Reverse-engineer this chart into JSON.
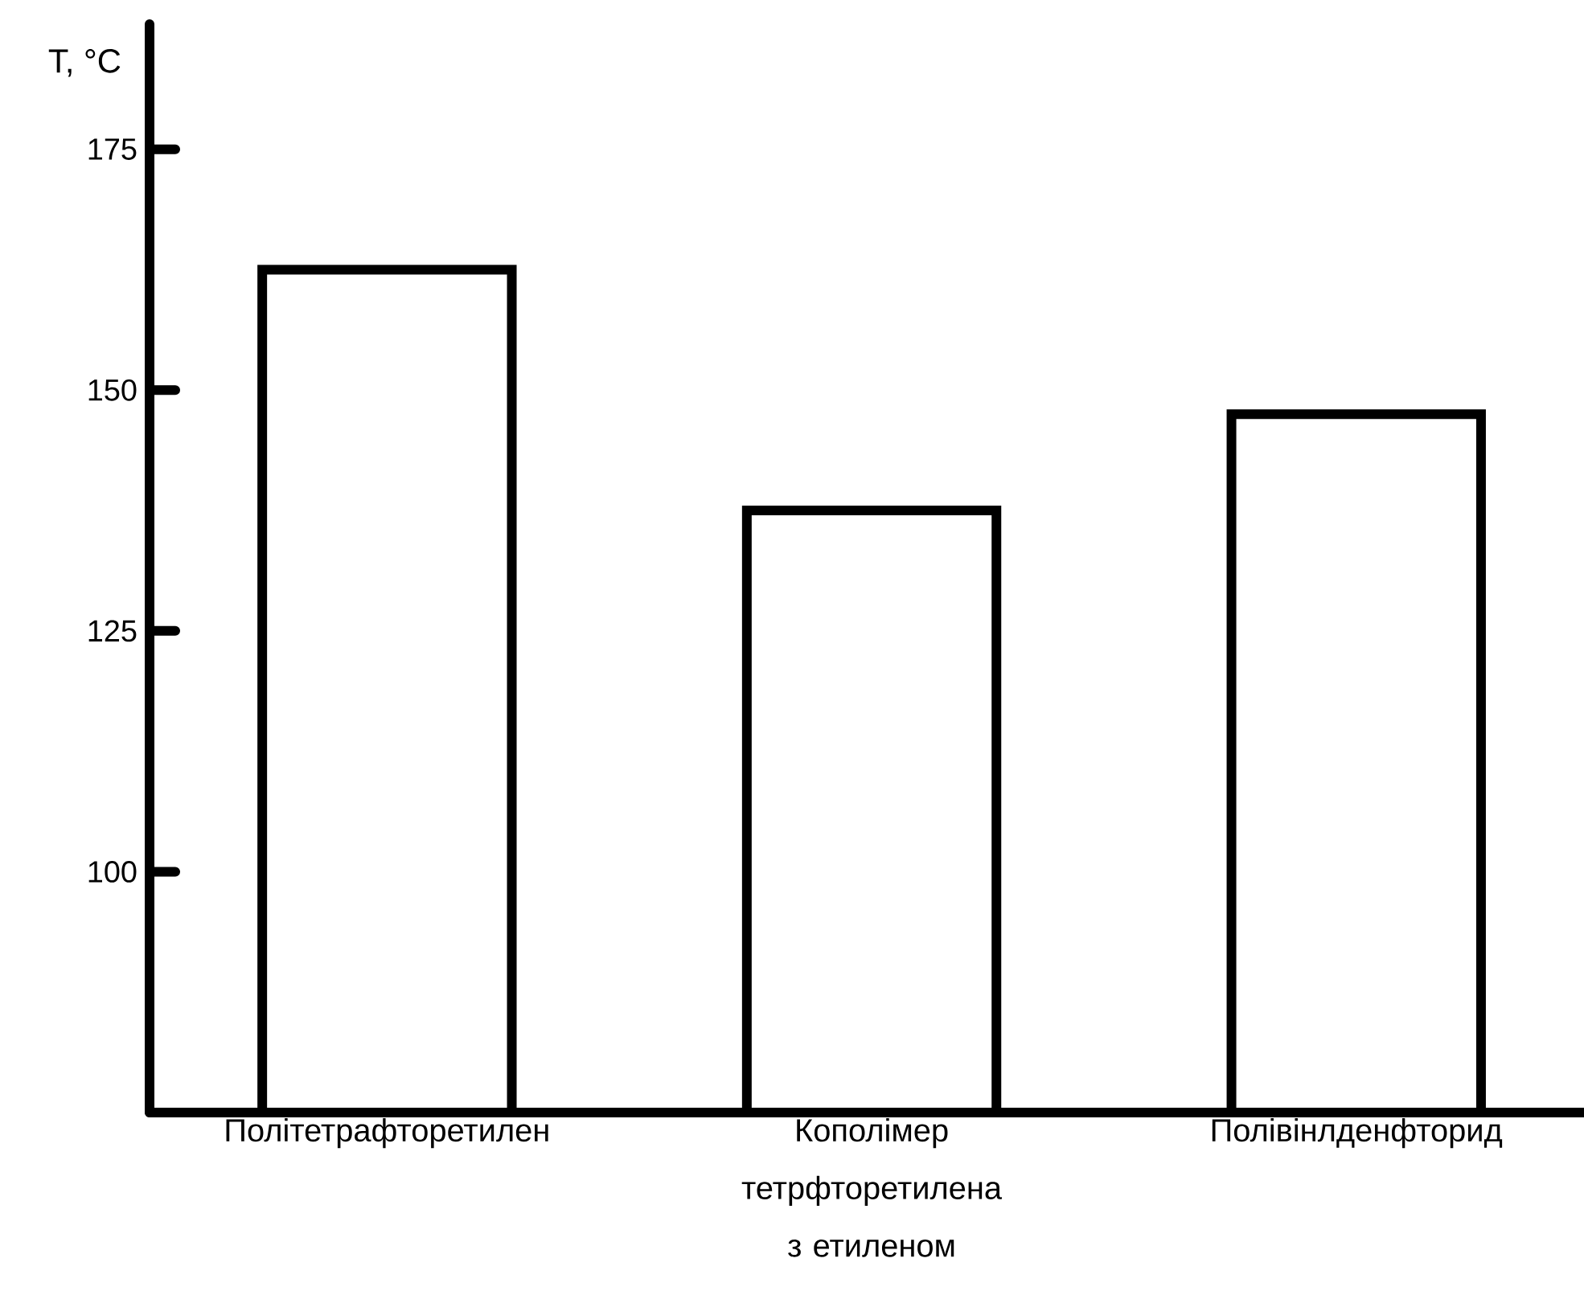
{
  "chart_data": {
    "type": "bar",
    "ylabel": "T, °C",
    "categories": [
      "Політетрафторетилен",
      "Кополімер тетрфторетилена з етиленом",
      "Полівінлденфторид"
    ],
    "values": [
      162.5,
      137.5,
      147.5
    ],
    "color": "#ffffff",
    "ylim": [
      75,
      188
    ],
    "yticks": [
      100,
      125,
      150,
      175
    ],
    "grid": false
  }
}
